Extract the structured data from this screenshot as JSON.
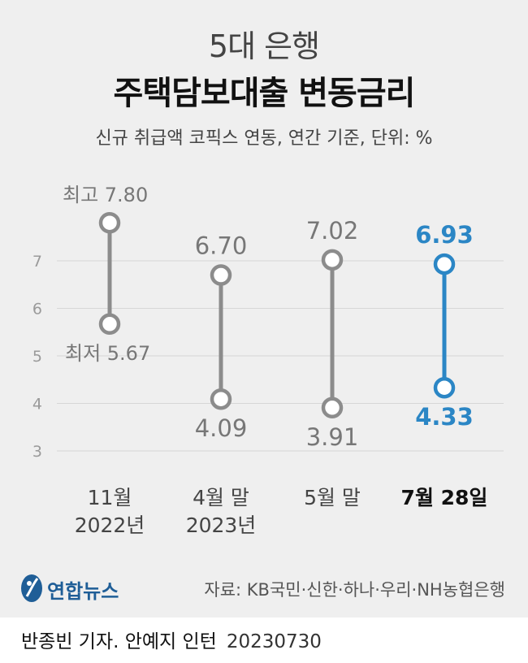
{
  "header": {
    "subtitle": "5대 은행",
    "title": "주택담보대출 변동금리",
    "note": "신규 취급액 코픽스 연동, 연간 기준, 단위: %"
  },
  "chart_data": {
    "type": "range",
    "title": "주택담보대출 변동금리",
    "subtitle": "5대 은행",
    "ylabel": "%",
    "ylim": [
      3,
      7.8
    ],
    "yticks": [
      3,
      4,
      5,
      6,
      7
    ],
    "categories": [
      {
        "line1": "11월",
        "line2": "2022년"
      },
      {
        "line1": "4월 말",
        "line2": "2023년"
      },
      {
        "line1": "5월 말",
        "line2": ""
      },
      {
        "line1": "7월 28일",
        "line2": ""
      }
    ],
    "high": [
      7.8,
      6.7,
      7.02,
      6.93
    ],
    "low": [
      5.67,
      4.09,
      3.91,
      4.33
    ],
    "high_labels": [
      "7.80",
      "6.70",
      "7.02",
      "6.93"
    ],
    "low_labels": [
      "5.67",
      "4.09",
      "3.91",
      "4.33"
    ],
    "high_prefix": "최고",
    "low_prefix": "최저",
    "highlight_index": 3,
    "colors": {
      "normal": "#8c8c8c",
      "highlight": "#2b86c5",
      "grid": "#d6d6d6",
      "tick": "#9a9a9a"
    }
  },
  "footer": {
    "logo_text": "연합뉴스",
    "source": "자료: KB국민·신한·하나·우리·NH농협은행",
    "credit": "반종빈 기자. 안예지 인턴",
    "date": "20230730"
  }
}
